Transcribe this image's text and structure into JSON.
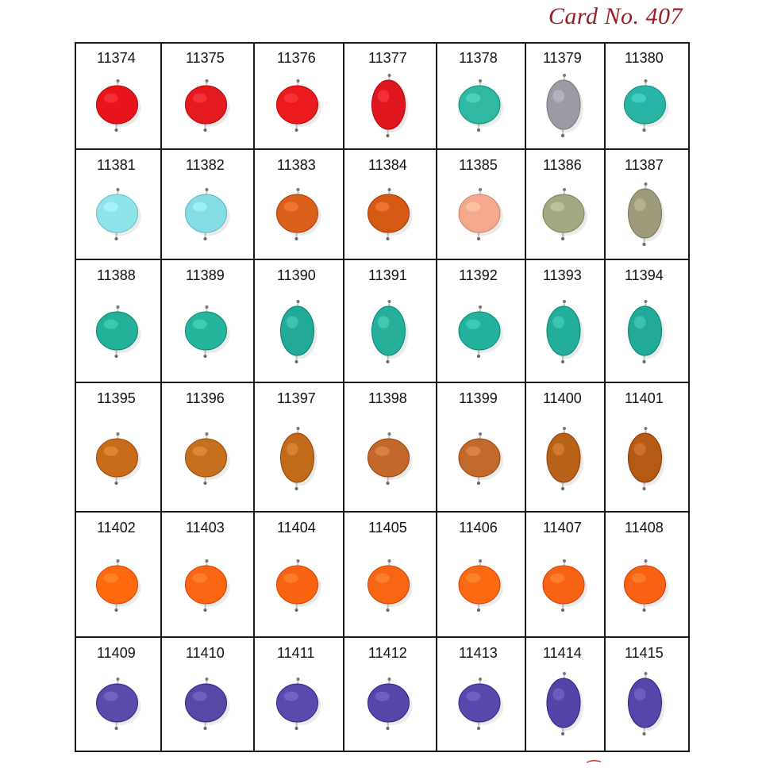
{
  "card_title": "Card No. 407",
  "rows": [
    {
      "color": "red",
      "items": [
        {
          "code": "11374",
          "fill": "#e8141c",
          "shape": "round"
        },
        {
          "code": "11375",
          "fill": "#e41a20",
          "shape": "round"
        },
        {
          "code": "11376",
          "fill": "#ea1a1e",
          "shape": "round"
        },
        {
          "code": "11377",
          "fill": "#e0161e",
          "shape": "oval"
        },
        {
          "code": "11378",
          "fill": "#2fb8a4",
          "shape": "round"
        },
        {
          "code": "11379",
          "fill": "#9e9aa4",
          "shape": "oval"
        },
        {
          "code": "11380",
          "fill": "#2ab4a6",
          "shape": "round"
        }
      ]
    },
    {
      "color": "light",
      "items": [
        {
          "code": "11381",
          "fill": "#8ee4ea",
          "shape": "round"
        },
        {
          "code": "11382",
          "fill": "#84dce4",
          "shape": "round"
        },
        {
          "code": "11383",
          "fill": "#d9601a",
          "shape": "round"
        },
        {
          "code": "11384",
          "fill": "#d45a14",
          "shape": "round"
        },
        {
          "code": "11385",
          "fill": "#f6a88c",
          "shape": "round"
        },
        {
          "code": "11386",
          "fill": "#a4a882",
          "shape": "round"
        },
        {
          "code": "11387",
          "fill": "#9c9a78",
          "shape": "oval"
        }
      ]
    },
    {
      "color": "teal",
      "items": [
        {
          "code": "11388",
          "fill": "#24b09a",
          "shape": "round"
        },
        {
          "code": "11389",
          "fill": "#26b49e",
          "shape": "round"
        },
        {
          "code": "11390",
          "fill": "#22aa98",
          "shape": "oval"
        },
        {
          "code": "11391",
          "fill": "#26b09c",
          "shape": "oval"
        },
        {
          "code": "11392",
          "fill": "#24b29e",
          "shape": "round"
        },
        {
          "code": "11393",
          "fill": "#22ae9a",
          "shape": "oval"
        },
        {
          "code": "11394",
          "fill": "#22aa98",
          "shape": "oval"
        }
      ]
    },
    {
      "color": "amber",
      "items": [
        {
          "code": "11395",
          "fill": "#c86c1c",
          "shape": "round"
        },
        {
          "code": "11396",
          "fill": "#c4701e",
          "shape": "round"
        },
        {
          "code": "11397",
          "fill": "#c06a1a",
          "shape": "oval"
        },
        {
          "code": "11398",
          "fill": "#c2682a",
          "shape": "round"
        },
        {
          "code": "11399",
          "fill": "#c26a2c",
          "shape": "round"
        },
        {
          "code": "11400",
          "fill": "#b86218",
          "shape": "oval"
        },
        {
          "code": "11401",
          "fill": "#b45a14",
          "shape": "oval"
        }
      ]
    },
    {
      "color": "orange",
      "items": [
        {
          "code": "11402",
          "fill": "#ff6a10",
          "shape": "round"
        },
        {
          "code": "11403",
          "fill": "#fb6612",
          "shape": "round"
        },
        {
          "code": "11404",
          "fill": "#fa6410",
          "shape": "round"
        },
        {
          "code": "11405",
          "fill": "#f86614",
          "shape": "round"
        },
        {
          "code": "11406",
          "fill": "#fb6a12",
          "shape": "round"
        },
        {
          "code": "11407",
          "fill": "#f86414",
          "shape": "round"
        },
        {
          "code": "11408",
          "fill": "#f86212",
          "shape": "round"
        }
      ]
    },
    {
      "color": "purple",
      "items": [
        {
          "code": "11409",
          "fill": "#5a4aac",
          "shape": "round"
        },
        {
          "code": "11410",
          "fill": "#5848a6",
          "shape": "round"
        },
        {
          "code": "11411",
          "fill": "#5a4aae",
          "shape": "round"
        },
        {
          "code": "11412",
          "fill": "#5546aa",
          "shape": "round"
        },
        {
          "code": "11413",
          "fill": "#5848ac",
          "shape": "round"
        },
        {
          "code": "11414",
          "fill": "#5444a8",
          "shape": "oval"
        },
        {
          "code": "11415",
          "fill": "#5646aa",
          "shape": "oval"
        }
      ]
    }
  ]
}
